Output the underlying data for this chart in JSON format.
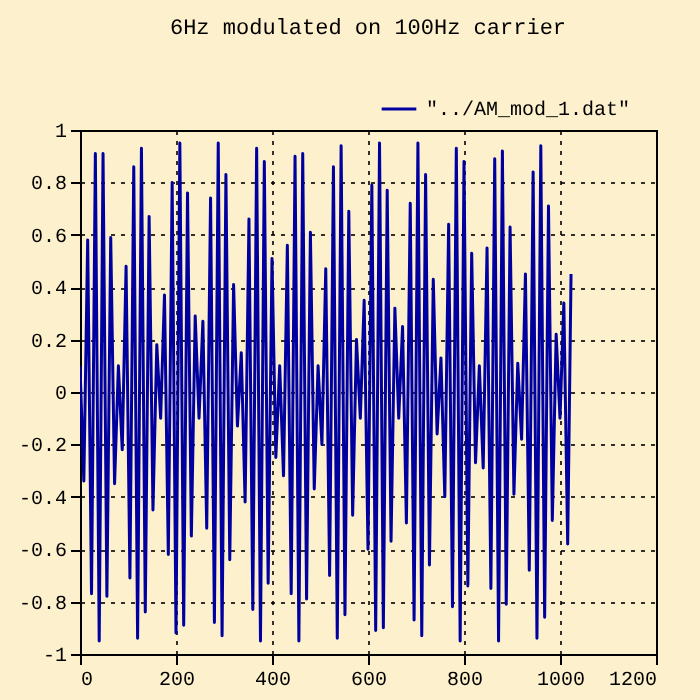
{
  "chart_data": {
    "type": "line",
    "title": "6Hz modulated on 100Hz carrier",
    "x": [
      0,
      8,
      16,
      24,
      32,
      40,
      48,
      56,
      64,
      72,
      80,
      88,
      96,
      104,
      112,
      120,
      128,
      136,
      144,
      152,
      160,
      168,
      176,
      184,
      192,
      200,
      208,
      216,
      224,
      232,
      240,
      248,
      256,
      264,
      272,
      280,
      288,
      296,
      304,
      312,
      320,
      328,
      336,
      344,
      352,
      360,
      368,
      376,
      384,
      392,
      400,
      408,
      416,
      424,
      432,
      440,
      448,
      456,
      464,
      472,
      480,
      488,
      496,
      504,
      512,
      520,
      528,
      536,
      544,
      552,
      560,
      568,
      576,
      584,
      592,
      600,
      608,
      616,
      624,
      632,
      640,
      648,
      656,
      664,
      672,
      680,
      688,
      696,
      704,
      712,
      720,
      728,
      736,
      744,
      752,
      760,
      768,
      776,
      784,
      792,
      800,
      808,
      816,
      824,
      832,
      840,
      848,
      856,
      864,
      872,
      880,
      888,
      896,
      904,
      912,
      920,
      928,
      936,
      944,
      952,
      960,
      968,
      976,
      984,
      992,
      1000,
      1008,
      1016,
      1023
    ],
    "series": [
      {
        "name": "\"../AM_mod_1.dat\"",
        "color": "#0000a0",
        "values": [
          0.1,
          -0.34,
          0.58,
          -0.77,
          0.91,
          -0.95,
          0.91,
          -0.78,
          0.59,
          -0.35,
          0.1,
          -0.22,
          0.48,
          -0.71,
          0.86,
          -0.94,
          0.93,
          -0.84,
          0.67,
          -0.45,
          0.18,
          -0.1,
          0.37,
          -0.62,
          0.8,
          -0.92,
          0.95,
          -0.89,
          0.76,
          -0.55,
          0.29,
          -0.1,
          0.27,
          -0.52,
          0.74,
          -0.88,
          0.95,
          -0.93,
          0.83,
          -0.64,
          0.41,
          -0.13,
          0.15,
          -0.42,
          0.66,
          -0.83,
          0.93,
          -0.95,
          0.88,
          -0.73,
          0.51,
          -0.25,
          0.1,
          -0.32,
          0.56,
          -0.77,
          0.9,
          -0.95,
          0.91,
          -0.79,
          0.61,
          -0.37,
          0.1,
          -0.2,
          0.47,
          -0.7,
          0.86,
          -0.94,
          0.94,
          -0.85,
          0.69,
          -0.47,
          0.2,
          -0.1,
          0.35,
          -0.6,
          0.79,
          -0.91,
          0.95,
          -0.9,
          0.77,
          -0.57,
          0.32,
          -0.1,
          0.25,
          -0.5,
          0.72,
          -0.87,
          0.95,
          -0.93,
          0.83,
          -0.66,
          0.43,
          -0.16,
          0.13,
          -0.4,
          0.64,
          -0.82,
          0.93,
          -0.95,
          0.88,
          -0.74,
          0.53,
          -0.27,
          0.1,
          -0.29,
          0.55,
          -0.75,
          0.89,
          -0.95,
          0.92,
          -0.81,
          0.63,
          -0.39,
          0.11,
          -0.18,
          0.45,
          -0.68,
          0.84,
          -0.94,
          0.94,
          -0.86,
          0.71,
          -0.49,
          0.22,
          -0.1,
          0.34,
          -0.58,
          0.45
        ]
      }
    ],
    "xlim": [
      0,
      1200
    ],
    "xticks": [
      0,
      200,
      400,
      600,
      800,
      1000,
      1200
    ],
    "ylim": [
      -1,
      1
    ],
    "yticks": [
      -1,
      -0.8,
      -0.6,
      -0.4,
      -0.2,
      0,
      0.2,
      0.4,
      0.6,
      0.8,
      1
    ],
    "grid": true,
    "legend": "top right",
    "marker": "none",
    "line_style": "solid"
  }
}
